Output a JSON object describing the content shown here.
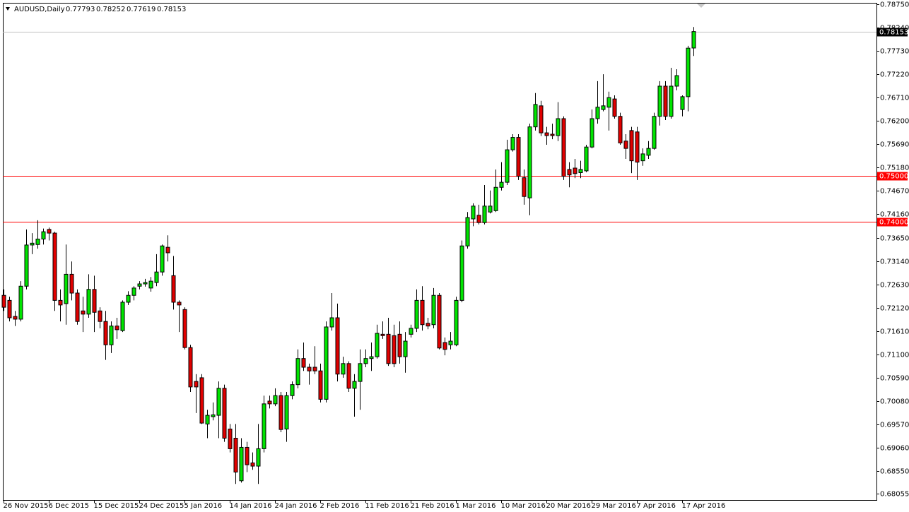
{
  "chart_data": {
    "type": "candlestick",
    "title": "AUDUSD,Daily",
    "categories": [
      "26 Nov 2015",
      null,
      null,
      null,
      null,
      null,
      null,
      null,
      "6 Dec 2015",
      null,
      null,
      null,
      null,
      null,
      null,
      null,
      "15 Dec 2015",
      null,
      null,
      null,
      null,
      null,
      null,
      null,
      "24 Dec 2015",
      null,
      null,
      null,
      null,
      null,
      null,
      null,
      "5 Jan 2016",
      null,
      null,
      null,
      null,
      null,
      null,
      null,
      "14 Jan 2016",
      null,
      null,
      null,
      null,
      null,
      null,
      null,
      "24 Jan 2016",
      null,
      null,
      null,
      null,
      null,
      null,
      null,
      "2 Feb 2016",
      null,
      null,
      null,
      null,
      null,
      null,
      null,
      "11 Feb 2016",
      null,
      null,
      null,
      null,
      null,
      null,
      null,
      "21 Feb 2016",
      null,
      null,
      null,
      null,
      null,
      null,
      null,
      "1 Mar 2016",
      null,
      null,
      null,
      null,
      null,
      null,
      null,
      "10 Mar 2016",
      null,
      null,
      null,
      null,
      null,
      null,
      null,
      "20 Mar 2016",
      null,
      null,
      null,
      null,
      null,
      null,
      null,
      "29 Mar 2016",
      null,
      null,
      null,
      null,
      null,
      null,
      null,
      "7 Apr 2016",
      null,
      null,
      null,
      null,
      null,
      null,
      null,
      "17 Apr 2016",
      null,
      null
    ],
    "open": [
      0.7239,
      0.7228,
      0.7193,
      0.7187,
      0.7259,
      0.7349,
      0.735,
      0.7362,
      0.7383,
      0.7375,
      0.7228,
      0.7221,
      0.7285,
      0.7244,
      0.7205,
      0.7198,
      0.7252,
      0.7205,
      0.7182,
      0.7131,
      0.7172,
      0.7162,
      0.7224,
      0.7239,
      0.7259,
      0.7264,
      0.7255,
      0.7267,
      0.729,
      0.7344,
      0.7282,
      0.7224,
      0.7208,
      0.7125,
      0.7051,
      0.7059,
      0.6958,
      0.6974,
      0.6977,
      0.7036,
      0.6947,
      0.6927,
      0.6834,
      0.6907,
      0.6873,
      0.6866,
      0.6904,
      0.7008,
      0.7002,
      0.702,
      0.6947,
      0.702,
      0.7044,
      0.7101,
      0.7082,
      0.7082,
      0.7074,
      0.7012,
      0.717,
      0.719,
      0.7067,
      0.709,
      0.7036,
      0.7051,
      0.709,
      0.7101,
      0.7105,
      0.7154,
      0.7154,
      0.7151,
      0.7154,
      0.7105,
      0.7154,
      0.7167,
      0.7228,
      0.7178,
      0.7175,
      0.7239,
      0.7136,
      0.7131,
      0.7131,
      0.7228,
      0.7347,
      0.7406,
      0.7414,
      0.7398,
      0.7421,
      0.7424,
      0.7475,
      0.7486,
      0.7557,
      0.7584,
      0.7496,
      0.7452,
      0.7607,
      0.7653,
      0.7594,
      0.7591,
      0.7588,
      0.7625,
      0.7514,
      0.7517,
      0.7507,
      0.7511,
      0.7563,
      0.7625,
      0.7645,
      0.765,
      0.7668,
      0.763,
      0.7576,
      0.7599,
      0.7596,
      0.7533,
      0.7545,
      0.756,
      0.763,
      0.7696,
      0.763,
      0.7696,
      0.7645,
      0.7673,
      0.77793
    ],
    "high": [
      0.7252,
      0.7236,
      0.7205,
      0.727,
      0.7383,
      0.7375,
      0.7403,
      0.7385,
      0.7387,
      0.7378,
      0.7252,
      0.735,
      0.7313,
      0.7252,
      0.7236,
      0.7285,
      0.7282,
      0.7213,
      0.7205,
      0.7182,
      0.719,
      0.7228,
      0.7248,
      0.7259,
      0.727,
      0.7275,
      0.7279,
      0.7329,
      0.735,
      0.737,
      0.7325,
      0.7228,
      0.7213,
      0.7131,
      0.7067,
      0.7067,
      0.6989,
      0.7005,
      0.7051,
      0.7044,
      0.6958,
      0.6958,
      0.6927,
      0.6919,
      0.6896,
      0.6958,
      0.702,
      0.702,
      0.7036,
      0.7028,
      0.7028,
      0.7051,
      0.7121,
      0.7136,
      0.709,
      0.7128,
      0.709,
      0.7182,
      0.7244,
      0.7221,
      0.7105,
      0.7095,
      0.7067,
      0.7121,
      0.7121,
      0.7136,
      0.7175,
      0.7182,
      0.719,
      0.7175,
      0.7182,
      0.7159,
      0.7175,
      0.7252,
      0.7259,
      0.719,
      0.7255,
      0.7244,
      0.7147,
      0.7159,
      0.7236,
      0.7359,
      0.7421,
      0.744,
      0.7437,
      0.748,
      0.7468,
      0.7514,
      0.753,
      0.7579,
      0.7591,
      0.7591,
      0.7514,
      0.7614,
      0.7681,
      0.7664,
      0.7607,
      0.7614,
      0.7661,
      0.763,
      0.753,
      0.7537,
      0.7533,
      0.7568,
      0.7645,
      0.7707,
      0.7722,
      0.7684,
      0.7676,
      0.7638,
      0.7591,
      0.7607,
      0.7607,
      0.756,
      0.7576,
      0.7638,
      0.7707,
      0.7707,
      0.7736,
      0.7733,
      0.7676,
      0.7784,
      0.78252
    ],
    "low": [
      0.7205,
      0.7182,
      0.7172,
      0.7182,
      0.7252,
      0.7329,
      0.7341,
      0.735,
      0.7359,
      0.7205,
      0.7182,
      0.7175,
      0.7228,
      0.7175,
      0.7159,
      0.719,
      0.7159,
      0.7167,
      0.7098,
      0.7113,
      0.7144,
      0.7159,
      0.7218,
      0.7228,
      0.7252,
      0.7258,
      0.7247,
      0.7259,
      0.7282,
      0.7313,
      0.7208,
      0.7159,
      0.7121,
      0.7028,
      0.6982,
      0.6958,
      0.6927,
      0.6966,
      0.6927,
      0.6919,
      0.6896,
      0.6827,
      0.683,
      0.6853,
      0.6858,
      0.6827,
      0.6896,
      0.6992,
      0.6997,
      0.694,
      0.6919,
      0.7012,
      0.7036,
      0.7074,
      0.7044,
      0.7067,
      0.7005,
      0.7005,
      0.7162,
      0.7051,
      0.7059,
      0.7028,
      0.6974,
      0.6989,
      0.7082,
      0.7074,
      0.7101,
      0.7144,
      0.7085,
      0.7082,
      0.709,
      0.707,
      0.7147,
      0.7159,
      0.7162,
      0.7165,
      0.7167,
      0.7121,
      0.7108,
      0.7121,
      0.7128,
      0.7224,
      0.7341,
      0.739,
      0.7394,
      0.7394,
      0.7418,
      0.7421,
      0.7468,
      0.748,
      0.7553,
      0.7491,
      0.7437,
      0.7414,
      0.7599,
      0.7587,
      0.7568,
      0.758,
      0.7576,
      0.7491,
      0.7475,
      0.7495,
      0.7495,
      0.7508,
      0.756,
      0.7614,
      0.7641,
      0.7599,
      0.7625,
      0.7568,
      0.7537,
      0.7506,
      0.7491,
      0.7522,
      0.7537,
      0.7557,
      0.761,
      0.7622,
      0.7625,
      0.7687,
      0.763,
      0.7641,
      0.77619
    ],
    "close": [
      0.7213,
      0.719,
      0.7187,
      0.7259,
      0.7349,
      0.7353,
      0.7362,
      0.7378,
      0.7375,
      0.7228,
      0.7218,
      0.7285,
      0.7244,
      0.7182,
      0.7198,
      0.7252,
      0.7202,
      0.7182,
      0.7131,
      0.7172,
      0.7164,
      0.7224,
      0.7239,
      0.7255,
      0.7264,
      0.7267,
      0.727,
      0.729,
      0.7347,
      0.7332,
      0.7224,
      0.7218,
      0.7125,
      0.7039,
      0.7039,
      0.696,
      0.6977,
      0.6978,
      0.7036,
      0.6927,
      0.6904,
      0.6853,
      0.6907,
      0.6869,
      0.6866,
      0.6904,
      0.7002,
      0.7002,
      0.702,
      0.6946,
      0.702,
      0.7044,
      0.7101,
      0.7082,
      0.7074,
      0.7074,
      0.7012,
      0.717,
      0.719,
      0.7067,
      0.709,
      0.7036,
      0.7051,
      0.709,
      0.7101,
      0.7105,
      0.7156,
      0.7151,
      0.709,
      0.709,
      0.7105,
      0.7139,
      0.7167,
      0.7228,
      0.7175,
      0.7172,
      0.7239,
      0.7124,
      0.7121,
      0.7139,
      0.7228,
      0.7347,
      0.7409,
      0.7434,
      0.7398,
      0.7434,
      0.7434,
      0.7475,
      0.7486,
      0.7557,
      0.7584,
      0.7499,
      0.7455,
      0.7607,
      0.7656,
      0.7594,
      0.7588,
      0.7588,
      0.7625,
      0.7499,
      0.7502,
      0.7505,
      0.7514,
      0.7563,
      0.7625,
      0.765,
      0.7653,
      0.7671,
      0.763,
      0.7572,
      0.756,
      0.7533,
      0.753,
      0.7548,
      0.756,
      0.763,
      0.7696,
      0.763,
      0.7696,
      0.7719,
      0.7673,
      0.7779,
      0.78153
    ],
    "up_color": "#00e400",
    "down_color": "#e00000",
    "ylim": [
      0.6792,
      0.7878
    ],
    "yticks": [
      {
        "value": 0.7875,
        "label": "0.78750"
      },
      {
        "value": 0.7824,
        "label": "0.78240"
      },
      {
        "value": 0.7773,
        "label": "0.77730"
      },
      {
        "value": 0.7722,
        "label": "0.77220"
      },
      {
        "value": 0.7671,
        "label": "0.76710"
      },
      {
        "value": 0.762,
        "label": "0.76200"
      },
      {
        "value": 0.7569,
        "label": "0.75690"
      },
      {
        "value": 0.7518,
        "label": "0.75180"
      },
      {
        "value": 0.7467,
        "label": "0.74670"
      },
      {
        "value": 0.7416,
        "label": "0.74160"
      },
      {
        "value": 0.7365,
        "label": "0.73650"
      },
      {
        "value": 0.7314,
        "label": "0.73140"
      },
      {
        "value": 0.7263,
        "label": "0.72630"
      },
      {
        "value": 0.7212,
        "label": "0.72120"
      },
      {
        "value": 0.7161,
        "label": "0.71610"
      },
      {
        "value": 0.711,
        "label": "0.71100"
      },
      {
        "value": 0.7059,
        "label": "0.70590"
      },
      {
        "value": 0.7008,
        "label": "0.70080"
      },
      {
        "value": 0.6957,
        "label": "0.69570"
      },
      {
        "value": 0.6906,
        "label": "0.69060"
      },
      {
        "value": 0.6855,
        "label": "0.68550"
      },
      {
        "value": 0.68055,
        "label": "0.68055"
      }
    ],
    "hlines": [
      {
        "value": 0.75,
        "label": "0.75000"
      },
      {
        "value": 0.74,
        "label": "0.74000"
      }
    ],
    "hline_color": "#ff0000",
    "price_line_color": "#c0c0c0"
  }
}
